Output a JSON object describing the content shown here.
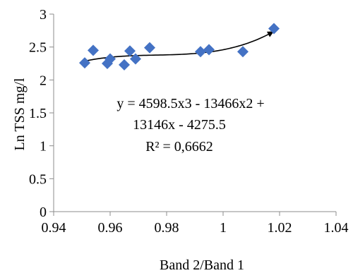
{
  "chart_data": {
    "type": "scatter",
    "xlabel": "Band 2/Band 1",
    "ylabel": "Ln TSS mg/l",
    "xlim": [
      0.94,
      1.04
    ],
    "ylim": [
      0,
      3
    ],
    "x_ticks": [
      "0.94",
      "0.96",
      "0.98",
      "1",
      "1.02",
      "1.04"
    ],
    "y_ticks": [
      "0",
      "0.5",
      "1",
      "1.5",
      "2",
      "2.5",
      "3"
    ],
    "grid": false,
    "marker": "diamond",
    "marker_color": "#4472C4",
    "trendline": {
      "type": "polynomial",
      "order": 3,
      "color": "#000000",
      "x_range": [
        0.951,
        1.018
      ],
      "equation_lines": [
        "y = 4598.5x3 - 13466x2 +",
        "13146x - 4275.5"
      ],
      "r_squared_label": "R² = 0,6662"
    },
    "series": [
      {
        "points": [
          {
            "x": 0.951,
            "y": 2.26
          },
          {
            "x": 0.954,
            "y": 2.45
          },
          {
            "x": 0.959,
            "y": 2.25
          },
          {
            "x": 0.96,
            "y": 2.32
          },
          {
            "x": 0.965,
            "y": 2.23
          },
          {
            "x": 0.967,
            "y": 2.44
          },
          {
            "x": 0.969,
            "y": 2.32
          },
          {
            "x": 0.974,
            "y": 2.49
          },
          {
            "x": 0.992,
            "y": 2.43
          },
          {
            "x": 0.995,
            "y": 2.46
          },
          {
            "x": 1.007,
            "y": 2.43
          },
          {
            "x": 1.018,
            "y": 2.78
          }
        ]
      }
    ]
  }
}
